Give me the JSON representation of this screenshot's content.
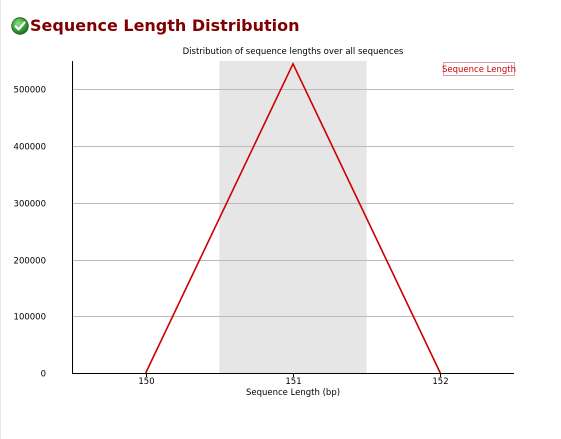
{
  "module": {
    "title": "Sequence Length Distribution",
    "status_icon": "pass-check-icon",
    "status": "pass"
  },
  "colors": {
    "title": "#800000",
    "line": "#cc0000",
    "band": "#e6e6e6",
    "grid": "#bbbbbb",
    "icon_green": "#3aa23a"
  },
  "chart_data": {
    "type": "line",
    "title": "Distribution of sequence lengths over all sequences",
    "xlabel": "Sequence Length (bp)",
    "ylabel": "",
    "categories": [
      "150",
      "151",
      "152"
    ],
    "series": [
      {
        "name": "Sequence Length",
        "values": [
          0,
          545000,
          0
        ]
      }
    ],
    "ylim": [
      0,
      550000
    ],
    "yticks": [
      0,
      100000,
      200000,
      300000,
      400000,
      500000
    ],
    "ytick_labels": [
      "0",
      "100000",
      "200000",
      "300000",
      "400000",
      "500000"
    ],
    "grid": true,
    "highlight_band": {
      "from": 150.5,
      "to": 151.5
    },
    "legend": {
      "entries": [
        "Sequence Length"
      ],
      "placement": "top-right"
    }
  }
}
